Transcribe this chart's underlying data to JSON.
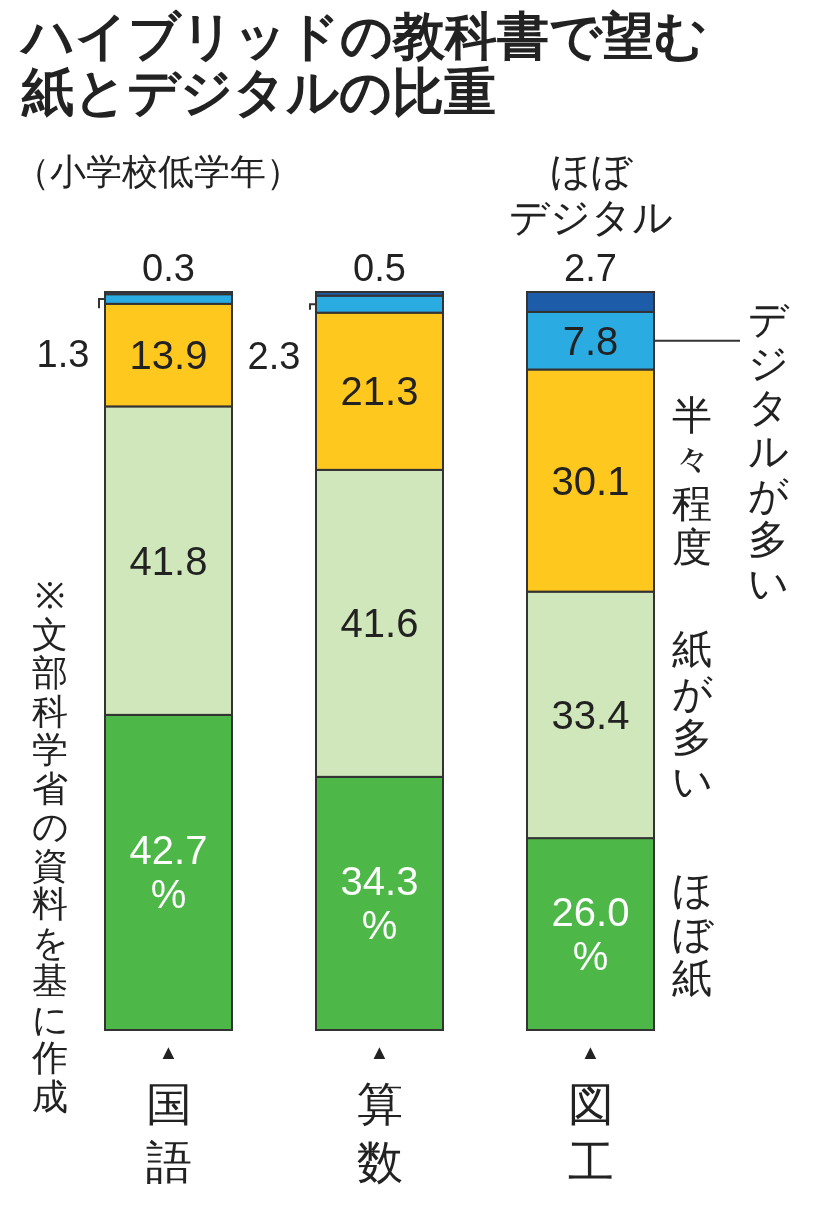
{
  "chart_data": {
    "type": "bar",
    "stacked": true,
    "title": "ハイブリッドの教科書で望む紙とデジタルの比重",
    "subtitle": "（小学校低学年）",
    "annotations": [
      "※文部科学省の資料を基に作成",
      "▲",
      "▲",
      "▲"
    ],
    "categories": [
      "国語",
      "算数",
      "図工"
    ],
    "series": [
      {
        "name": "ほぼ紙",
        "color": "#4db848",
        "values": [
          42.7,
          34.3,
          26.0
        ],
        "value_labels": [
          "42.7\n%",
          "34.3\n%",
          "26.0\n%"
        ]
      },
      {
        "name": "紙が多い",
        "color": "#d0e6bb",
        "values": [
          41.8,
          41.6,
          33.4
        ],
        "value_labels": [
          "41.8",
          "41.6",
          "33.4"
        ]
      },
      {
        "name": "半々程度",
        "color": "#ffc81e",
        "values": [
          13.9,
          21.3,
          30.1
        ],
        "value_labels": [
          "13.9",
          "21.3",
          "30.1"
        ]
      },
      {
        "name": "デジタルが多い",
        "color": "#2aace2",
        "values": [
          1.3,
          2.3,
          7.8
        ],
        "value_labels": [
          "1.3",
          "2.3",
          "7.8"
        ]
      },
      {
        "name": "ほぼデジタル",
        "color": "#1d5ca8",
        "values": [
          0.3,
          0.5,
          2.7
        ],
        "value_labels": [
          "0.3",
          "0.5",
          "2.7"
        ]
      }
    ]
  }
}
